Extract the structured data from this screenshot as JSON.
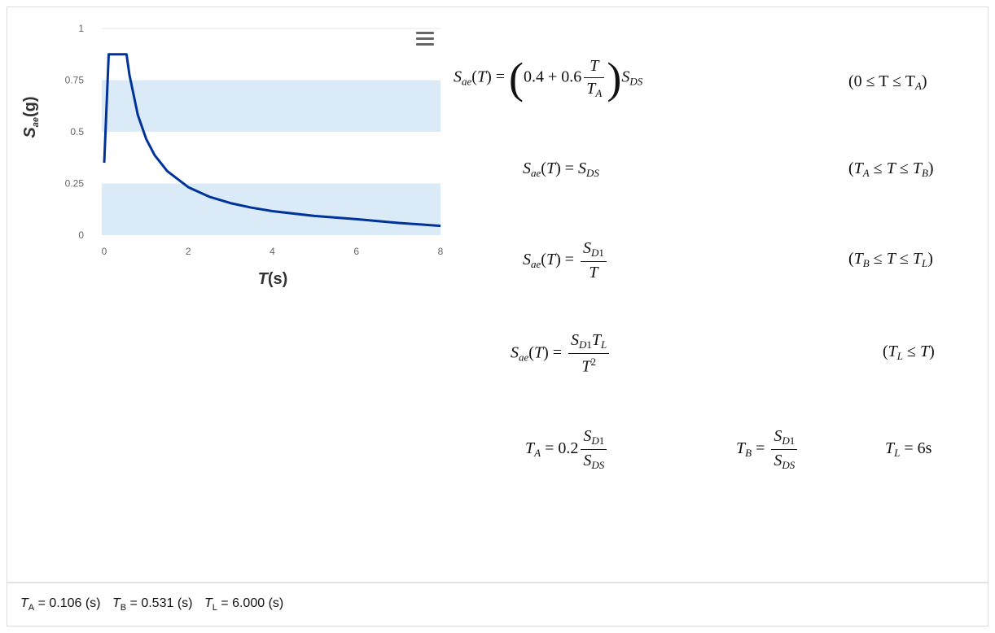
{
  "chart_data": {
    "type": "line",
    "title": "",
    "xlabel": "T(s)",
    "ylabel": "Sae(g)",
    "xlim": [
      0,
      8
    ],
    "ylim": [
      0,
      1
    ],
    "x_ticks": [
      "0",
      "2",
      "4",
      "6",
      "8"
    ],
    "y_ticks": [
      "0",
      "0.25",
      "0.5",
      "0.75",
      "1"
    ],
    "bands": [
      {
        "from": 0,
        "to": 0.25,
        "color": "#daeaf6"
      },
      {
        "from": 0.5,
        "to": 0.75,
        "color": "#daeaf6"
      }
    ],
    "series": [
      {
        "color": "#003399",
        "x": [
          0,
          0.106,
          0.531,
          0.6,
          0.8,
          1.0,
          1.2,
          1.5,
          2.0,
          2.5,
          3.0,
          3.5,
          4.0,
          5.0,
          6.0,
          7.0,
          8.0
        ],
        "y": [
          0.35,
          0.875,
          0.875,
          0.775,
          0.581,
          0.465,
          0.387,
          0.31,
          0.232,
          0.186,
          0.155,
          0.133,
          0.116,
          0.093,
          0.077,
          0.059,
          0.045
        ]
      }
    ],
    "legend": "none",
    "grid": false
  },
  "menu_icon": "hamburger-menu-icon",
  "footer": {
    "ta_label": "A",
    "ta_value": "= 0.106 (s)",
    "tb_label": "B",
    "tb_value": "= 0.531 (s)",
    "tl_label": "L",
    "tl_value": "= 6.000 (s)"
  },
  "equations": {
    "eq1_coef_a": "0.4 + 0.6",
    "eq1_cond": "(0 ≤ T ≤ T",
    "eq5_ta_coef": "0.2",
    "eq5_tl_value": "= 6s"
  }
}
